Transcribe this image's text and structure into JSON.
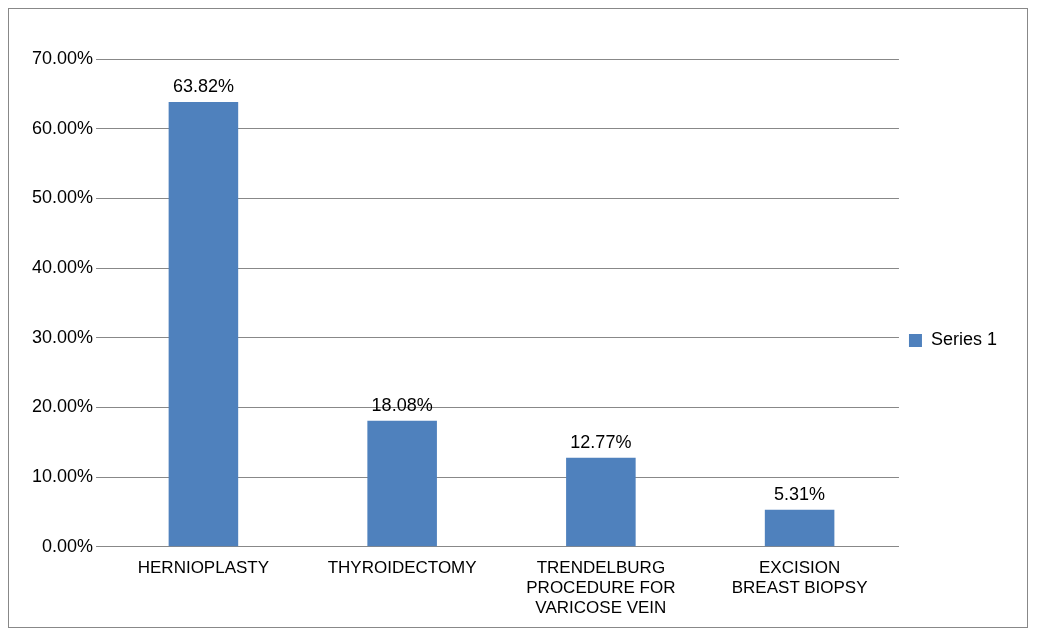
{
  "chart_data": {
    "type": "bar",
    "categories": [
      "HERNIOPLASTY",
      "THYROIDECTOMY",
      "TRENDELBURG PROCEDURE FOR VARICOSE VEIN",
      "EXCISION BREAST BIOPSY"
    ],
    "series": [
      {
        "name": "Series 1",
        "color": "#4f81bd",
        "values": [
          63.82,
          18.08,
          12.77,
          5.31
        ],
        "value_labels": [
          "63.82%",
          "18.08%",
          "12.77%",
          "5.31%"
        ]
      }
    ],
    "ylim": [
      0,
      70
    ],
    "yticks": [
      {
        "value": 0,
        "label": "0.00%"
      },
      {
        "value": 10,
        "label": "10.00%"
      },
      {
        "value": 20,
        "label": "20.00%"
      },
      {
        "value": 30,
        "label": "30.00%"
      },
      {
        "value": 40,
        "label": "40.00%"
      },
      {
        "value": 50,
        "label": "50.00%"
      },
      {
        "value": 60,
        "label": "60.00%"
      },
      {
        "value": 70,
        "label": "70.00%"
      }
    ],
    "grid": "y",
    "legend": "right"
  }
}
